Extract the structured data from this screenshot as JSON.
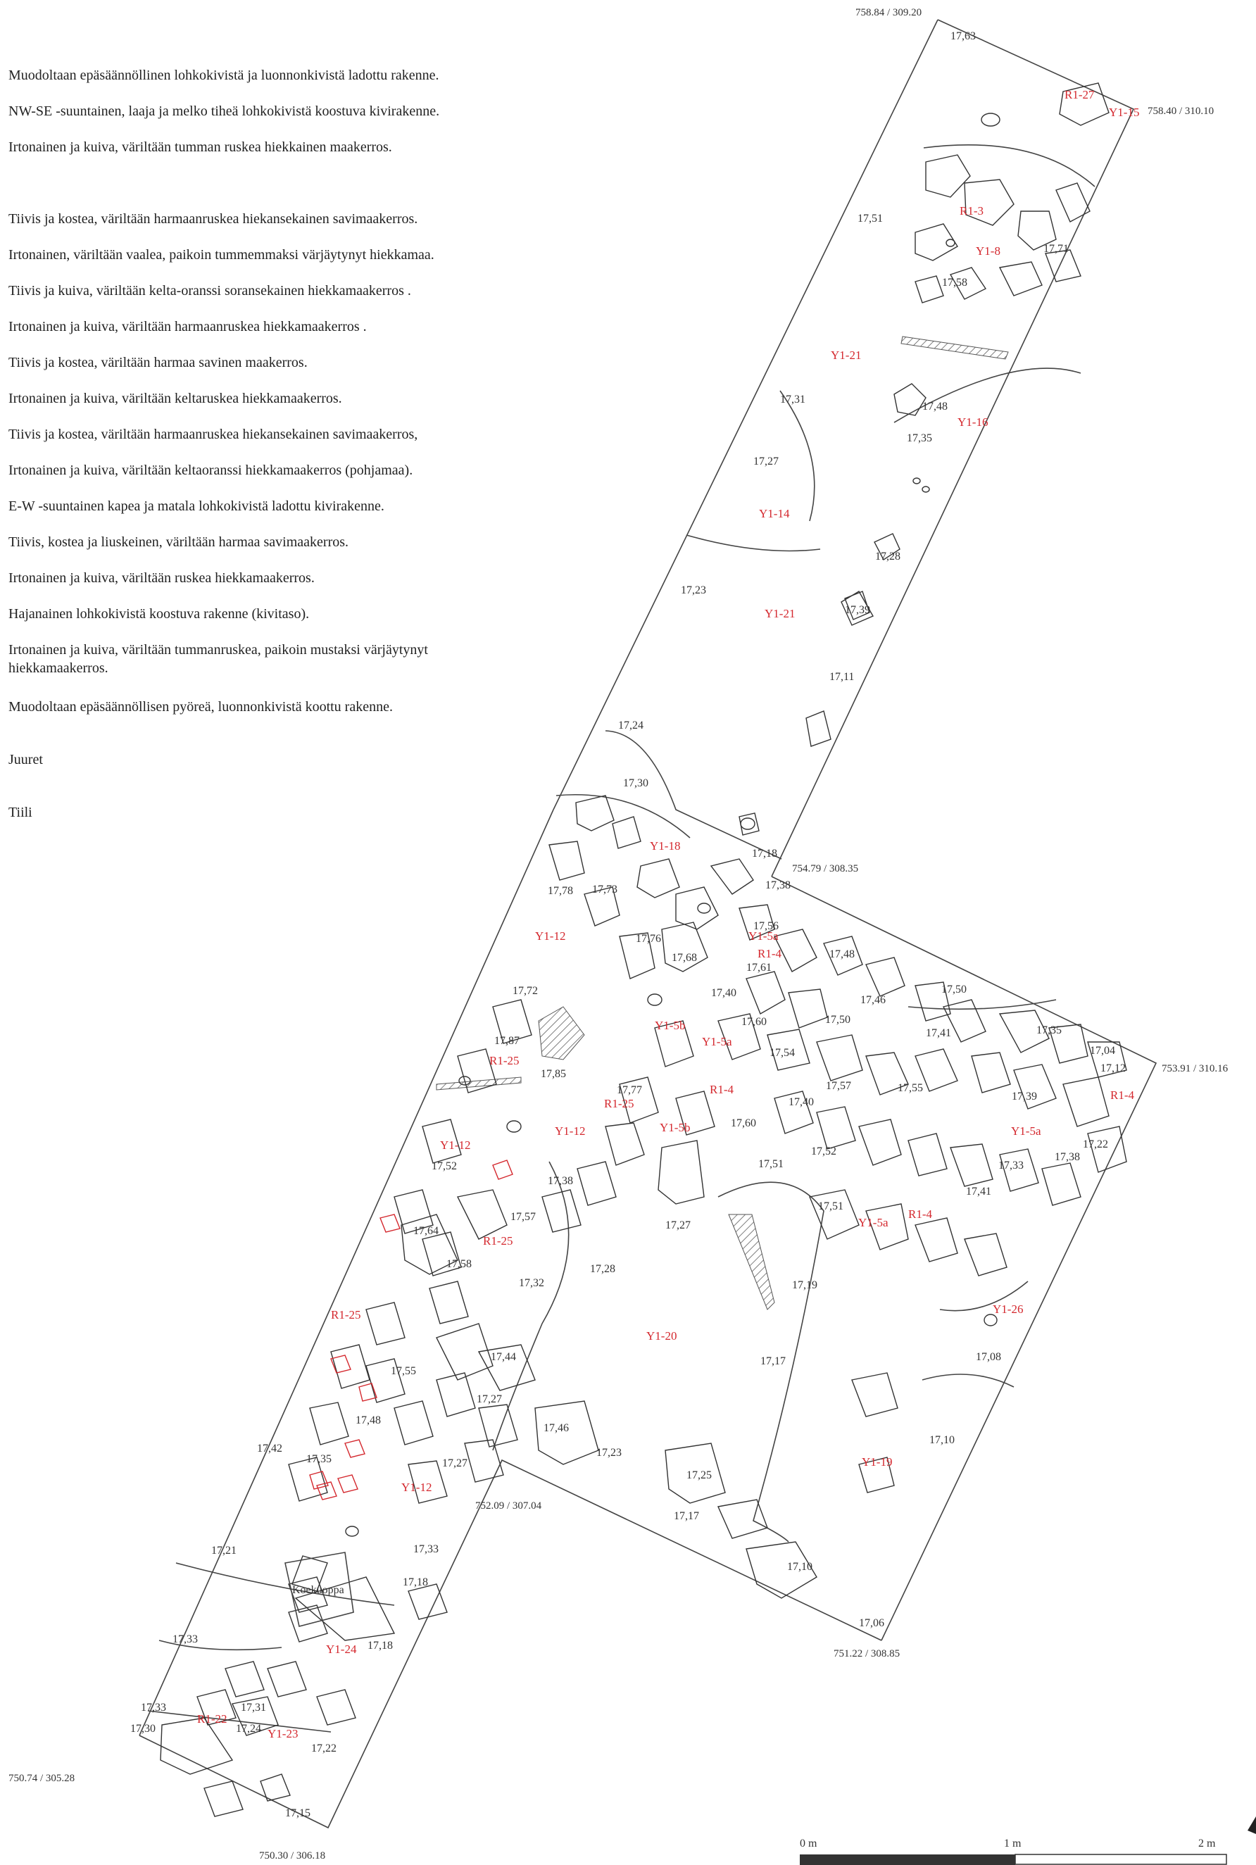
{
  "legend": [
    "Muodoltaan epäsäännöllinen lohkokivistä ja luonnonkivistä ladottu rakenne.",
    "NW-SE -suuntainen, laaja ja melko tiheä lohkokivistä koostuva kivirakenne.",
    "Irtonainen ja kuiva, väriltään tumman ruskea hiekkainen maakerros.",
    "Tiivis ja kostea, väriltään harmaanruskea hiekansekainen savimaakerros.",
    "Irtonainen, väriltään vaalea, paikoin tummemmaksi värjäytynyt hiekkamaa.",
    "Tiivis ja kuiva, väriltään kelta-oranssi soransekainen hiekkamaakerros .",
    "Irtonainen ja kuiva, väriltään harmaanruskea hiekkamaakerros .",
    "Tiivis ja kostea, väriltään harmaa savinen maakerros.",
    "Irtonainen ja kuiva, väriltään keltaruskea hiekkamaakerros.",
    "Tiivis ja kostea, väriltään harmaanruskea hiekansekainen savimaakerros,",
    "Irtonainen ja kuiva, väriltään keltaoranssi hiekkamaakerros (pohjamaa).",
    "E-W -suuntainen kapea ja matala lohkokivistä ladottu kivirakenne.",
    "Tiivis, kostea ja liuskeinen, väriltään harmaa savimaakerros.",
    "Irtonainen ja kuiva, väriltään ruskea hiekkamaakerros.",
    "Hajanainen lohkokivistä koostuva rakenne (kivitaso).",
    "Irtonainen ja kuiva, väriltään tummanruskea, paikoin mustaksi värjäytynyt hiekkamaakerros.",
    "Muodoltaan epäsäännöllisen pyöreä, luonnonkivistä koottu rakenne.",
    "Juuret",
    "Tiili"
  ],
  "coordinates": [
    "758.84 / 309.20",
    "758.40 / 310.10",
    "754.79 / 308.35",
    "753.91 / 310.16",
    "752.09 / 307.04",
    "751.22 / 308.85",
    "750.74 / 305.28",
    "750.30 / 306.18"
  ],
  "context_labels": [
    "R1-27",
    "Y1-15",
    "R1-3",
    "Y1-8",
    "Y1-21",
    "Y1-16",
    "Y1-14",
    "Y1-21",
    "Y1-18",
    "Y1-12",
    "Y1-5a",
    "R1-4",
    "Y1-5b",
    "Y1-5a",
    "R1-25",
    "R1-25",
    "R1-4",
    "Y1-5b",
    "Y1-12",
    "Y1-12",
    "R1-4",
    "Y1-5a",
    "Y1-5a",
    "R1-4",
    "R1-25",
    "R1-25",
    "Y1-20",
    "Y1-26",
    "Y1-19",
    "Y1-12",
    "Y1-24",
    "R1-22",
    "Y1-23"
  ],
  "elevations": [
    "17,63",
    "17,51",
    "17,71",
    "17,58",
    "17,31",
    "17,48",
    "17,35",
    "17,27",
    "17,28",
    "17,23",
    "17,39",
    "17,11",
    "17,24",
    "17,30",
    "17,18",
    "17,38",
    "17,78",
    "17,73",
    "17,76",
    "17,68",
    "17,56",
    "17,61",
    "17,48",
    "17,46",
    "17,50",
    "17,72",
    "17,40",
    "17,60",
    "17,50",
    "17,87",
    "17,54",
    "17,41",
    "17,35",
    "17,04",
    "17,12",
    "17,85",
    "17,77",
    "17,57",
    "17,55",
    "17,39",
    "17,40",
    "17,60",
    "17,52",
    "17,51",
    "17,33",
    "17,38",
    "17,22",
    "17,52",
    "17,38",
    "17,41",
    "17,51",
    "17,64",
    "17,57",
    "17,27",
    "17,58",
    "17,32",
    "17,28",
    "17,19",
    "17,44",
    "17,55",
    "17,17",
    "17,08",
    "17,27",
    "17,48",
    "17,46",
    "17,42",
    "17,35",
    "17,23",
    "17,10",
    "17,27",
    "17,25",
    "17,17",
    "17,21",
    "17,33",
    "17,10",
    "17,18",
    "17,06",
    "17,33",
    "17,18",
    "17,31",
    "17,33",
    "17,30",
    "17,24",
    "17,22",
    "17,15"
  ],
  "feature": "Koekuoppa",
  "scale": {
    "labels": [
      "0 m",
      "1 m",
      "2 m"
    ]
  }
}
